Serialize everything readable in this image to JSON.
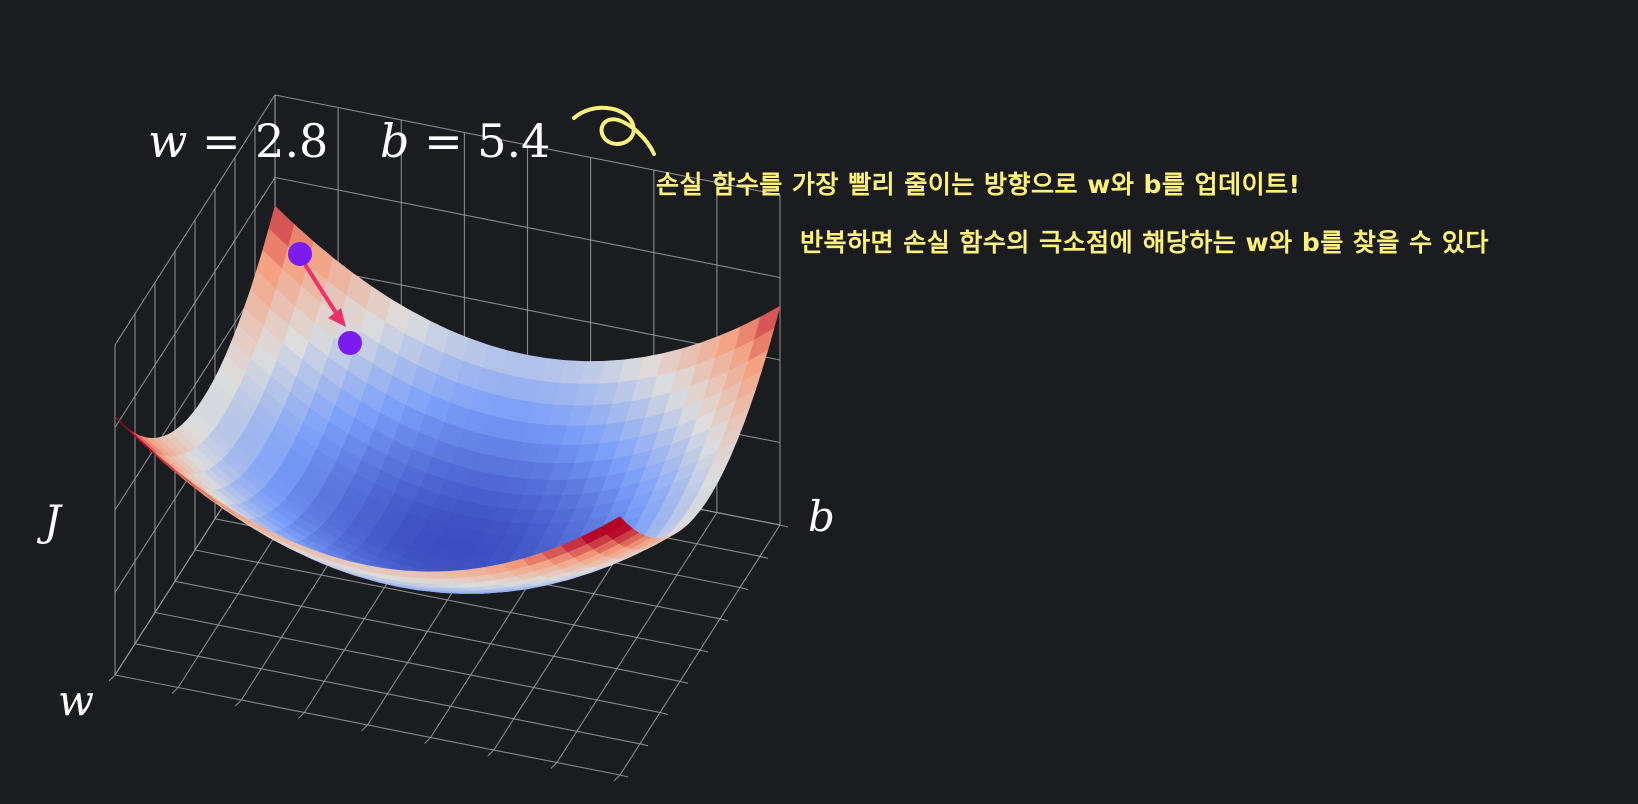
{
  "params": {
    "w": {
      "symbol": "w",
      "eq": " = ",
      "value": "2.8"
    },
    "b": {
      "symbol": "b",
      "eq": " = ",
      "value": "5.4"
    }
  },
  "axes": {
    "z": "J",
    "x": "w",
    "y": "b"
  },
  "notes": {
    "line1": "손실 함수를 가장 빨리 줄이는 방향으로 w와 b를 업데이트!",
    "line2": "반복하면 손실 함수의 극소점에 해당하는 w와 b를 찾을 수 있다"
  },
  "colors": {
    "background": "#1b1c20",
    "annotation": "#fff27a",
    "point": "#7a1cf0",
    "arrow": "#f0306a",
    "grid": "#9a9aa2",
    "surface_low": "#3b4cc0",
    "surface_mid": "#dddddd",
    "surface_high": "#b40426"
  },
  "diagram": {
    "surface": "paraboloid",
    "colormap": "coolwarm",
    "step_points": [
      {
        "name": "current-point"
      },
      {
        "name": "next-point"
      }
    ]
  }
}
